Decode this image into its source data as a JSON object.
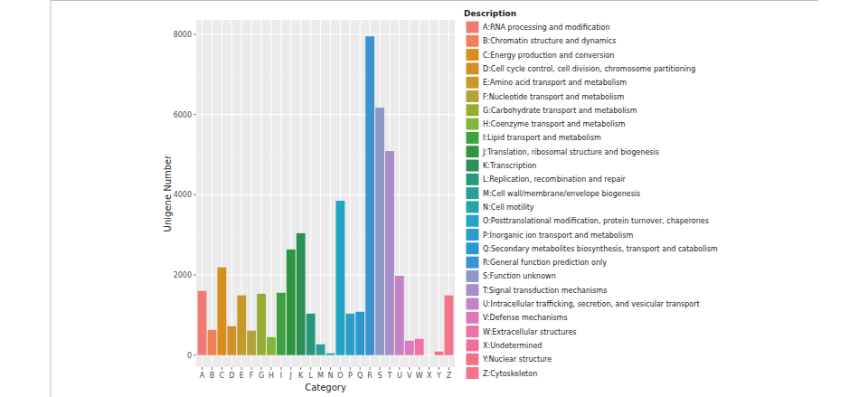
{
  "chart_data": {
    "type": "bar",
    "x_label": "Category",
    "y_label": "Unigene Number",
    "legend_title": "Description",
    "categories": [
      "A",
      "B",
      "C",
      "D",
      "E",
      "F",
      "G",
      "H",
      "I",
      "J",
      "K",
      "L",
      "M",
      "N",
      "O",
      "P",
      "Q",
      "R",
      "S",
      "T",
      "U",
      "V",
      "W",
      "X",
      "Y",
      "Z"
    ],
    "values": [
      1600,
      630,
      2190,
      720,
      1490,
      610,
      1530,
      450,
      1555,
      2635,
      3040,
      1035,
      270,
      45,
      3850,
      1035,
      1080,
      7950,
      6170,
      5090,
      1980,
      360,
      405,
      0,
      90,
      1490
    ],
    "descriptions": [
      "A:RNA processing and modification",
      "B:Chromatin structure and dynamics",
      "C:Energy production and conversion",
      "D:Cell cycle control, cell division, chromosome partitioning",
      "E:Amino acid transport and metabolism",
      "F:Nucleotide transport and metabolism",
      "G:Carbohydrate transport and metabolism",
      "H:Coenzyme transport and metabolism",
      "I:Lipid transport and metabolism",
      "J:Translation, ribosomal structure and biogenesis",
      "K:Transcription",
      "L:Replication, recombination and repair",
      "M:Cell wall/membrane/envelope biogenesis",
      "N:Cell motility",
      "O:Posttranslational modification, protein turnover, chaperones",
      "P:Inorganic ion transport and metabolism",
      "Q:Secondary metabolites biosynthesis, transport and catabolism",
      "R:General function prediction only",
      "S:Function unknown",
      "T:Signal transduction mechanisms",
      "U:Intracellular trafficking, secretion, and vesicular transport",
      "V:Defense mechanisms",
      "W:Extracellular structures",
      "X:Undetermined",
      "Y:Nuclear structure",
      "Z:Cytoskeleton"
    ],
    "colors": [
      "#F07A74",
      "#EE8257",
      "#D88D1F",
      "#D19026",
      "#C59A2A",
      "#B2A23A",
      "#98AC34",
      "#84B537",
      "#3EA243",
      "#2D963F",
      "#2B9056",
      "#26977B",
      "#2B9E95",
      "#26A4A9",
      "#22A5C4",
      "#2A9DC9",
      "#2B97CF",
      "#3B94CF",
      "#8F96C9",
      "#A78DC9",
      "#C682C6",
      "#E177BB",
      "#ED72A8",
      "#F46E9B",
      "#F26F88",
      "#F4748C"
    ],
    "ylim": [
      -300,
      8360
    ],
    "yticks": [
      0,
      2000,
      4000,
      6000,
      8000
    ],
    "grid": true,
    "legend": "right"
  }
}
